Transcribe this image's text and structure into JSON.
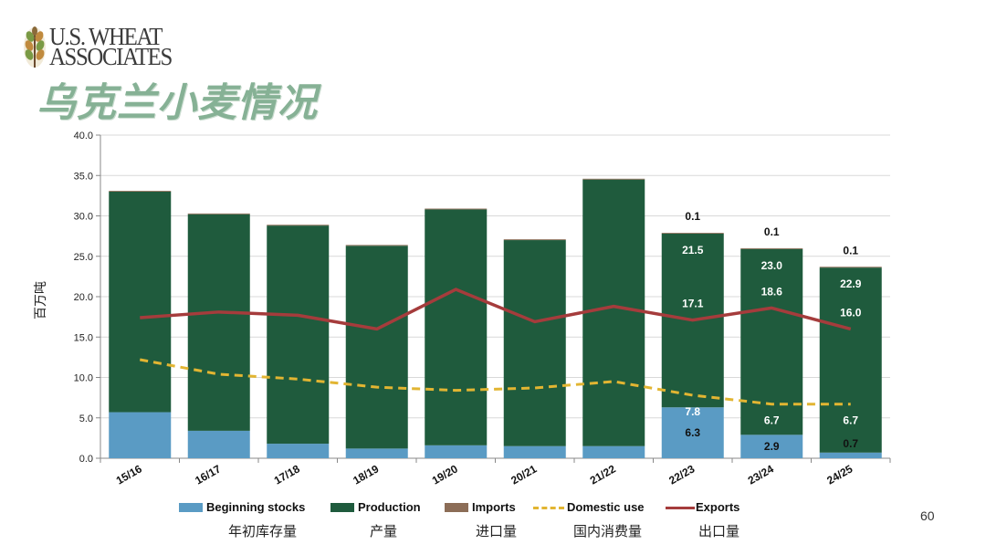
{
  "logo": {
    "line1": "U.S. WHEAT",
    "line2": "ASSOCIATES"
  },
  "title": "乌克兰小麦情况",
  "page_number": "60",
  "colors": {
    "title": "#86b195",
    "beginning_stocks": "#5a9bc4",
    "production": "#1f5b3d",
    "imports": "#8c6d57",
    "domestic_use": "#e2b532",
    "exports": "#a53c3c",
    "grid": "#d9d9d9"
  },
  "chart_data": {
    "type": "bar",
    "stacked": true,
    "categories": [
      "15/16",
      "16/17",
      "17/18",
      "18/19",
      "19/20",
      "20/21",
      "21/22",
      "22/23",
      "23/24",
      "24/25"
    ],
    "ylabel": "百万吨",
    "xlabel": "",
    "ylim": [
      0,
      40
    ],
    "yticks": [
      0,
      5,
      10,
      15,
      20,
      25,
      30,
      35,
      40
    ],
    "ytick_labels": [
      "0.0",
      "5.0",
      "10.0",
      "15.0",
      "20.0",
      "25.0",
      "30.0",
      "35.0",
      "40.0"
    ],
    "grid": true,
    "legend_position": "bottom",
    "series": [
      {
        "name": "Beginning stocks",
        "name_zh": "年初库存量",
        "type": "bar",
        "color": "#5a9bc4",
        "values": [
          5.7,
          3.4,
          1.8,
          1.2,
          1.6,
          1.5,
          1.5,
          6.3,
          2.9,
          0.7
        ],
        "labels": [
          null,
          null,
          null,
          null,
          null,
          null,
          null,
          "6.3",
          "2.9",
          "0.7"
        ],
        "label_color": "#111111"
      },
      {
        "name": "Production",
        "name_zh": "产量",
        "type": "bar",
        "color": "#1f5b3d",
        "values": [
          27.3,
          26.8,
          27.0,
          25.1,
          29.2,
          25.5,
          33.0,
          21.5,
          23.0,
          22.9
        ],
        "labels": [
          null,
          null,
          null,
          null,
          null,
          null,
          null,
          "21.5",
          "23.0",
          "22.9"
        ],
        "label_color": "#ffffff"
      },
      {
        "name": "Imports",
        "name_zh": "进口量",
        "type": "bar",
        "color": "#8c6d57",
        "values": [
          0.1,
          0.1,
          0.1,
          0.1,
          0.1,
          0.1,
          0.1,
          0.1,
          0.1,
          0.1
        ],
        "labels": [
          null,
          null,
          null,
          null,
          null,
          null,
          null,
          "0.1",
          "0.1",
          "0.1"
        ],
        "label_color": "#111111"
      },
      {
        "name": "Domestic use",
        "name_zh": "国内消费量",
        "type": "line",
        "style": "dashed",
        "color": "#e2b532",
        "values": [
          12.2,
          10.4,
          9.8,
          8.8,
          8.4,
          8.7,
          9.5,
          7.8,
          6.7,
          6.7
        ],
        "labels": [
          null,
          null,
          null,
          null,
          null,
          null,
          null,
          "7.8",
          "6.7",
          "6.7"
        ],
        "label_color": "#ffffff"
      },
      {
        "name": "Exports",
        "name_zh": "出口量",
        "type": "line",
        "style": "solid",
        "color": "#a53c3c",
        "values": [
          17.4,
          18.1,
          17.7,
          16.0,
          20.9,
          16.9,
          18.8,
          17.1,
          18.6,
          16.0
        ],
        "labels": [
          null,
          null,
          null,
          null,
          null,
          null,
          null,
          "17.1",
          "18.6",
          "16.0"
        ],
        "label_color": "#ffffff"
      }
    ]
  }
}
